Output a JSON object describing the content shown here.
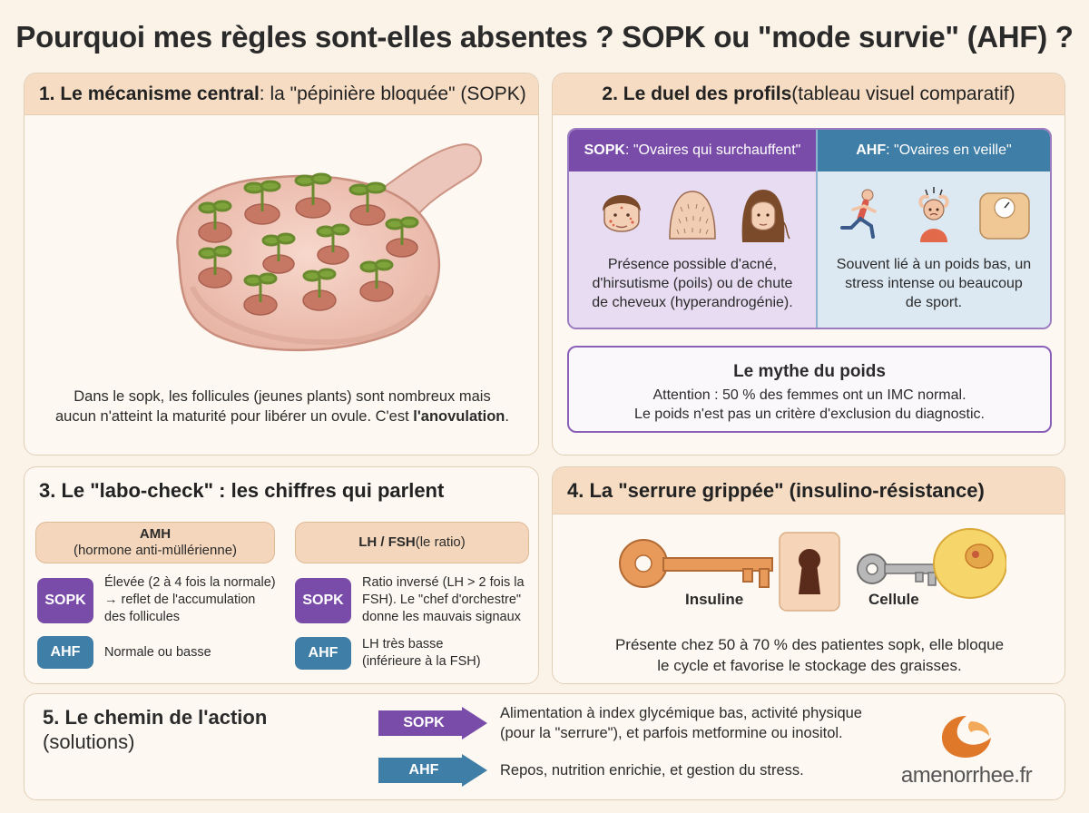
{
  "title": "Pourquoi mes règles sont-elles absentes ? SOPK ou \"mode survie\" (AHF) ?",
  "section1": {
    "head_bold": "1. Le mécanisme central",
    "head_rest": " : la \"pépinière bloquée\" (SOPK)",
    "desc_1": "Dans le sopk, les follicules (jeunes plants) sont nombreux mais",
    "desc_2": "aucun n'atteint la maturité pour libérer un ovule. C'est ",
    "desc_bold": "l'anovulation",
    "desc_end": "."
  },
  "section2": {
    "head_bold": "2. Le duel des profils",
    "head_rest": " (tableau visuel comparatif)",
    "sopk": {
      "label": "SOPK",
      "subtitle": " : \"Ovaires qui surchauffent\"",
      "text_1": "Présence possible d'acné,",
      "text_2": "d'hirsutisme (poils) ou de chute",
      "text_3": "de cheveux (hyperandrogénie)."
    },
    "ahf": {
      "label": "AHF",
      "subtitle": " : \"Ovaires en veille\"",
      "text_1": "Souvent lié à un poids bas, un",
      "text_2": "stress intense ou beaucoup",
      "text_3": "de sport."
    },
    "myth": {
      "title": "Le mythe du poids",
      "text_1": "Attention : 50 % des femmes ont un IMC normal.",
      "text_2": "Le poids n'est pas un critère d'exclusion du diagnostic."
    }
  },
  "section3": {
    "head": "3. Le \"labo-check\" : les chiffres qui parlent",
    "amh_title": "AMH",
    "amh_sub": "(hormone anti-müllérienne)",
    "lhfsh_title": "LH / FSH",
    "lhfsh_sub": " (le ratio)",
    "badge_sopk": "SOPK",
    "badge_ahf": "AHF",
    "amh_sopk_1": "Élevée (2 à 4 fois la normale)",
    "amh_sopk_2": "→ reflet de l'accumulation",
    "amh_sopk_3": "des follicules",
    "amh_ahf": "Normale ou basse",
    "lh_sopk_1": "Ratio inversé (LH > 2 fois la",
    "lh_sopk_2": "FSH). Le \"chef d'orchestre\"",
    "lh_sopk_3": "donne les mauvais signaux",
    "lh_ahf_1": "LH très basse",
    "lh_ahf_2": "(inférieure à la FSH)"
  },
  "section4": {
    "head": "4. La \"serrure grippée\" (insulino-résistance)",
    "label_insuline": "Insuline",
    "label_cellule": "Cellule",
    "desc_1": "Présente chez 50 à 70 % des patientes sopk, elle bloque",
    "desc_2": "le cycle et favorise le stockage des graisses."
  },
  "section5": {
    "title_bold": "5. Le chemin de l'action",
    "title_rest": "(solutions)",
    "sopk_label": "SOPK",
    "sopk_text_1": "Alimentation à index glycémique bas, activité physique",
    "sopk_text_2": "(pour la \"serrure\"), et parfois metformine ou inositol.",
    "ahf_label": "AHF",
    "ahf_text": "Repos, nutrition enrichie, et gestion du stress."
  },
  "brand": "amenorrhee.fr",
  "colors": {
    "sopk": "#7a4ca9",
    "ahf": "#3f7ea6",
    "header": "#f5dcc3",
    "background": "#fbf3e8",
    "brand_orange": "#e0782a"
  }
}
